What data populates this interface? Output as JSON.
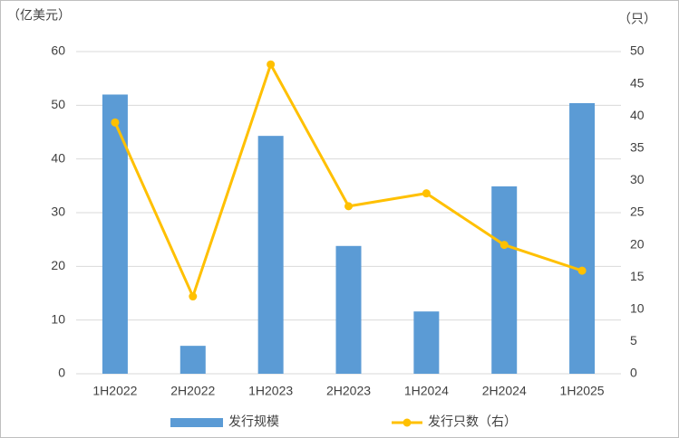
{
  "chart_data": {
    "type": "bar",
    "y_label": "（亿美元）",
    "y2_label": "（只）",
    "categories": [
      "1H2022",
      "2H2022",
      "1H2023",
      "2H2023",
      "1H2024",
      "2H2024",
      "1H2025"
    ],
    "series": [
      {
        "name": "发行规模",
        "type": "bar",
        "color": "#5b9bd5",
        "values": [
          52,
          5.2,
          44.3,
          23.8,
          11.6,
          34.9,
          50.4
        ]
      },
      {
        "name": "发行只数（右）",
        "type": "line",
        "axis": "y2",
        "color": "#ffc000",
        "values": [
          39,
          12,
          48,
          26,
          28,
          20,
          16
        ]
      }
    ],
    "ylim": [
      0,
      60
    ],
    "yticks": [
      0,
      10,
      20,
      30,
      40,
      50,
      60
    ],
    "y2lim": [
      0,
      50
    ],
    "y2ticks": [
      0,
      5,
      10,
      15,
      20,
      25,
      30,
      35,
      40,
      45,
      50
    ],
    "grid": true,
    "legend": "bottom"
  }
}
